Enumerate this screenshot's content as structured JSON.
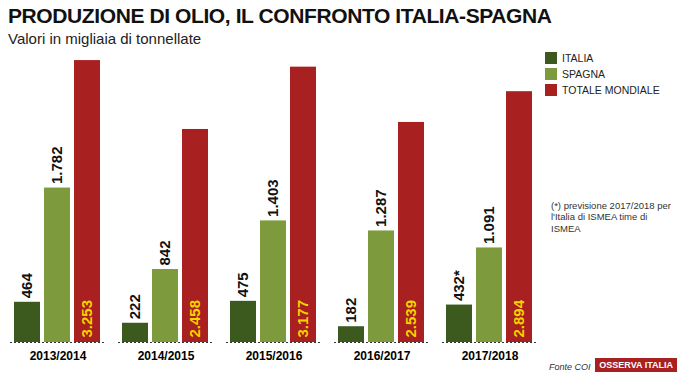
{
  "chart_data": {
    "type": "bar",
    "title": "PRODUZIONE DI OLIO, IL CONFRONTO ITALIA-SPAGNA",
    "subtitle": "Valori in migliaia di tonnellate",
    "note": "(*) previsione 2017/2018 per l'Italia di ISMEA time di ISMEA",
    "source": "Fonte COI",
    "logo": "OSSERVA ITALIA",
    "categories": [
      "2013/2014",
      "2014/2015",
      "2015/2016",
      "2016/2017",
      "2017/2018"
    ],
    "series": [
      {
        "name": "ITALIA",
        "color": "#3d5a1e",
        "values": [
          464,
          222,
          475,
          182,
          432
        ],
        "value_labels": [
          "464",
          "222",
          "475",
          "182",
          "432*"
        ]
      },
      {
        "name": "SPAGNA",
        "color": "#7d9b3c",
        "values": [
          1782,
          842,
          1403,
          1287,
          1091
        ],
        "value_labels": [
          "1.782",
          "842",
          "1.403",
          "1.287",
          "1.091"
        ]
      },
      {
        "name": "TOTALE MONDIALE",
        "color": "#a8201f",
        "values": [
          3253,
          2458,
          3177,
          2539,
          2894
        ],
        "value_labels": [
          "3.253",
          "2.458",
          "3.177",
          "2.539",
          "2.894"
        ]
      }
    ],
    "ylim": [
      0,
      3300
    ],
    "data_labels": true,
    "tick_labels": "x",
    "legend": "top-right",
    "grid": false
  }
}
